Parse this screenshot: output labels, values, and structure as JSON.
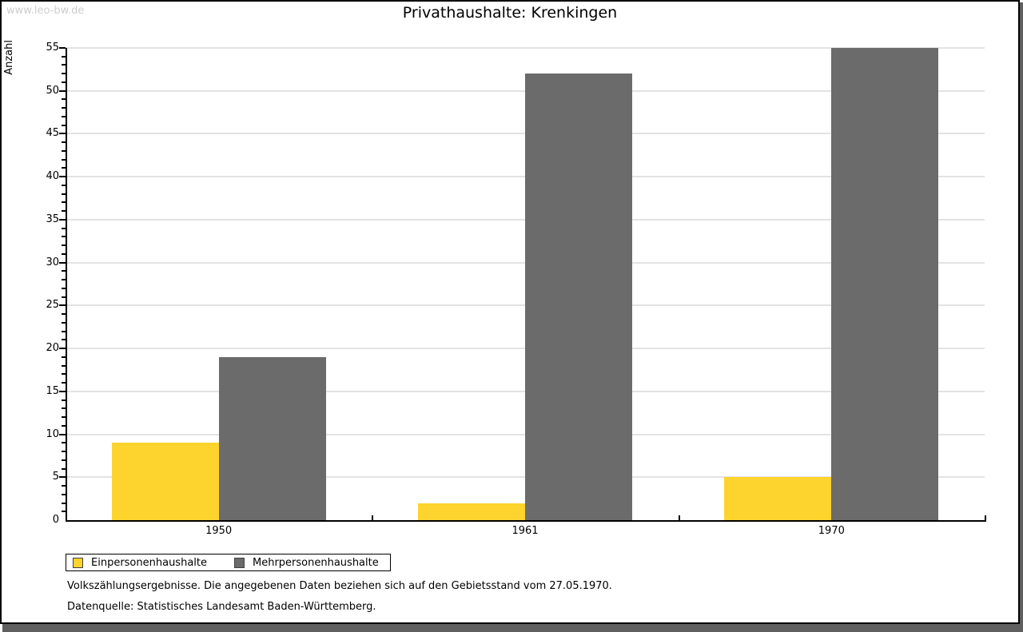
{
  "watermark": "www.leo-bw.de",
  "title": "Privathaushalte: Krenkingen",
  "chart_data": {
    "type": "bar",
    "title": "Privathaushalte: Krenkingen",
    "categories": [
      "1950",
      "1961",
      "1970"
    ],
    "series": [
      {
        "name": "Einpersonenhaushalte",
        "color": "#fdd32d",
        "values": [
          9,
          2,
          5
        ]
      },
      {
        "name": "Mehrpersonenhaushalte",
        "color": "#6b6b6b",
        "values": [
          19,
          52,
          55
        ]
      }
    ],
    "xlabel": "",
    "ylabel": "Anzahl",
    "ylim": [
      0,
      55
    ],
    "y_major_step": 5,
    "y_minor_step": 1,
    "grid": true,
    "legend_position": "bottom-left"
  },
  "footnotes": [
    "Volkszählungsergebnisse. Die angegebenen Daten beziehen sich auf den Gebietsstand vom 27.05.1970.",
    "Datenquelle: Statistisches Landesamt Baden-Württemberg."
  ],
  "colors": {
    "series_1": "#fdd32d",
    "series_2": "#6b6b6b",
    "gridline": "#e3e3e3",
    "axis": "#000000",
    "watermark": "#cdcdcd",
    "shadow": "#5f5f5f"
  }
}
